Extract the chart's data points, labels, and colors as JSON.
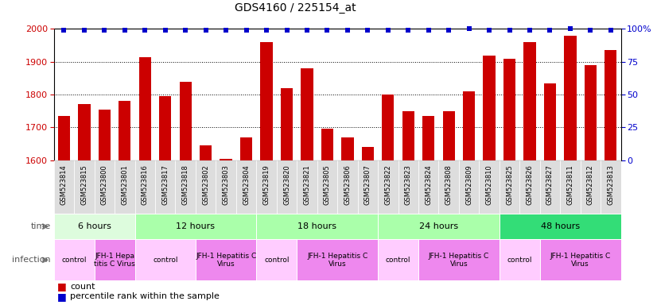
{
  "title": "GDS4160 / 225154_at",
  "samples": [
    "GSM523814",
    "GSM523815",
    "GSM523800",
    "GSM523801",
    "GSM523816",
    "GSM523817",
    "GSM523818",
    "GSM523802",
    "GSM523803",
    "GSM523804",
    "GSM523819",
    "GSM523820",
    "GSM523821",
    "GSM523805",
    "GSM523806",
    "GSM523807",
    "GSM523822",
    "GSM523823",
    "GSM523824",
    "GSM523808",
    "GSM523809",
    "GSM523810",
    "GSM523825",
    "GSM523826",
    "GSM523827",
    "GSM523811",
    "GSM523812",
    "GSM523813"
  ],
  "counts": [
    1735,
    1770,
    1755,
    1780,
    1915,
    1795,
    1840,
    1645,
    1605,
    1670,
    1960,
    1820,
    1880,
    1695,
    1670,
    1640,
    1800,
    1750,
    1735,
    1750,
    1810,
    1920,
    1910,
    1960,
    1835,
    1980,
    1890,
    1935
  ],
  "percentiles": [
    99,
    99,
    99,
    99,
    99,
    99,
    99,
    99,
    99,
    99,
    99,
    99,
    99,
    99,
    99,
    99,
    99,
    99,
    99,
    99,
    100,
    99,
    99,
    99,
    99,
    100,
    99,
    99
  ],
  "ylim_left": [
    1600,
    2000
  ],
  "ylim_right": [
    0,
    100
  ],
  "yticks_left": [
    1600,
    1700,
    1800,
    1900,
    2000
  ],
  "yticks_right": [
    0,
    25,
    50,
    75,
    100
  ],
  "bar_color": "#cc0000",
  "dot_color": "#0000cc",
  "time_groups": [
    {
      "label": "6 hours",
      "start": 0,
      "end": 4,
      "color": "#ddfcdd"
    },
    {
      "label": "12 hours",
      "start": 4,
      "end": 10,
      "color": "#aaffaa"
    },
    {
      "label": "18 hours",
      "start": 10,
      "end": 16,
      "color": "#aaffaa"
    },
    {
      "label": "24 hours",
      "start": 16,
      "end": 22,
      "color": "#aaffaa"
    },
    {
      "label": "48 hours",
      "start": 22,
      "end": 28,
      "color": "#33dd77"
    }
  ],
  "infection_groups": [
    {
      "label": "control",
      "start": 0,
      "end": 2,
      "color": "#ffccff"
    },
    {
      "label": "JFH-1 Hepa\ntitis C Virus",
      "start": 2,
      "end": 4,
      "color": "#ee88ee"
    },
    {
      "label": "control",
      "start": 4,
      "end": 7,
      "color": "#ffccff"
    },
    {
      "label": "JFH-1 Hepatitis C\nVirus",
      "start": 7,
      "end": 10,
      "color": "#ee88ee"
    },
    {
      "label": "control",
      "start": 10,
      "end": 12,
      "color": "#ffccff"
    },
    {
      "label": "JFH-1 Hepatitis C\nVirus",
      "start": 12,
      "end": 16,
      "color": "#ee88ee"
    },
    {
      "label": "control",
      "start": 16,
      "end": 18,
      "color": "#ffccff"
    },
    {
      "label": "JFH-1 Hepatitis C\nVirus",
      "start": 18,
      "end": 22,
      "color": "#ee88ee"
    },
    {
      "label": "control",
      "start": 22,
      "end": 24,
      "color": "#ffccff"
    },
    {
      "label": "JFH-1 Hepatitis C\nVirus",
      "start": 24,
      "end": 28,
      "color": "#ee88ee"
    }
  ],
  "legend_count_color": "#cc0000",
  "legend_dot_color": "#0000cc",
  "background_color": "#ffffff",
  "grid_color": "#000000",
  "tick_label_color_left": "#cc0000",
  "tick_label_color_right": "#0000cc",
  "xlabel_bg_color": "#dddddd"
}
